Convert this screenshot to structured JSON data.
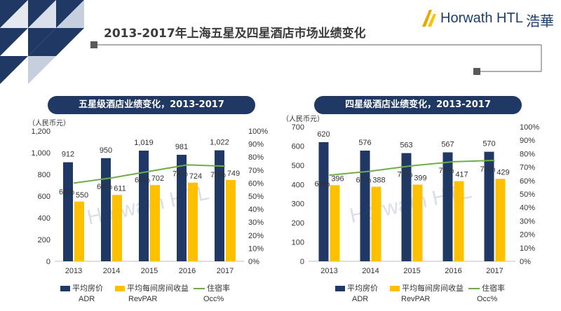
{
  "header": {
    "title": "2013-2017年上海五星及四星酒店市场业绩变化",
    "logo_text": "Horwath HTL",
    "logo_cn": "浩華"
  },
  "colors": {
    "adr": "#1f3864",
    "revpar": "#ffc000",
    "occ": "#70ad47",
    "accent": "#1f3864"
  },
  "chart_data": [
    {
      "type": "bar",
      "title": "五星级酒店业绩变化，2013-2017",
      "ylabel": "（人民币元）",
      "categories": [
        "2013",
        "2014",
        "2015",
        "2016",
        "2017"
      ],
      "ylim": [
        0,
        1200
      ],
      "yticks": [
        "0",
        "200",
        "400",
        "600",
        "800",
        "1,000",
        "1,200"
      ],
      "y2lim": [
        0,
        100
      ],
      "y2ticks": [
        "0%",
        "10%",
        "20%",
        "30%",
        "40%",
        "50%",
        "60%",
        "70%",
        "80%",
        "90%",
        "100%"
      ],
      "series": [
        {
          "name": "平均房价",
          "kind": "bar",
          "values": [
            912,
            950,
            1019,
            981,
            1022
          ],
          "labels": [
            "912",
            "950",
            "1,019",
            "981",
            "1,022"
          ]
        },
        {
          "name": "平均每间房间收益",
          "kind": "bar",
          "values": [
            550,
            611,
            702,
            724,
            749
          ],
          "labels": [
            "550",
            "611",
            "702",
            "724",
            "749"
          ]
        },
        {
          "name": "住宿率",
          "kind": "line",
          "axis": "right",
          "values": [
            60,
            64,
            69,
            74,
            73
          ],
          "labels": [
            "60%",
            "64%",
            "69%",
            "74%",
            "73%"
          ]
        }
      ],
      "legend_sub": [
        "ADR",
        "RevPAR",
        "Occ%"
      ],
      "watermark": "Horwath HTL"
    },
    {
      "type": "bar",
      "title": "四星级酒店业绩变化，2013-2017",
      "ylabel": "（人民币元）",
      "categories": [
        "2013",
        "2014",
        "2015",
        "2016",
        "2017"
      ],
      "ylim": [
        0,
        700
      ],
      "yticks": [
        "0",
        "100",
        "200",
        "300",
        "400",
        "500",
        "600",
        "700"
      ],
      "y2lim": [
        0,
        100
      ],
      "y2ticks": [
        "0%",
        "10%",
        "20%",
        "30%",
        "40%",
        "50%",
        "60%",
        "70%",
        "80%",
        "90%",
        "100%"
      ],
      "series": [
        {
          "name": "平均房价",
          "kind": "bar",
          "values": [
            620,
            576,
            563,
            567,
            570
          ],
          "labels": [
            "620",
            "576",
            "563",
            "567",
            "570"
          ]
        },
        {
          "name": "平均每间房间收益",
          "kind": "bar",
          "values": [
            396,
            388,
            399,
            417,
            429
          ],
          "labels": [
            "396",
            "388",
            "399",
            "417",
            "429"
          ]
        },
        {
          "name": "住宿率",
          "kind": "line",
          "axis": "right",
          "values": [
            64,
            67,
            71,
            74,
            75
          ],
          "labels": [
            "64%",
            "67%",
            "71%",
            "74%",
            "75%"
          ]
        }
      ],
      "legend_sub": [
        "ADR",
        "RevPAR",
        "Occ%"
      ],
      "watermark": "Horwath HTL"
    }
  ]
}
